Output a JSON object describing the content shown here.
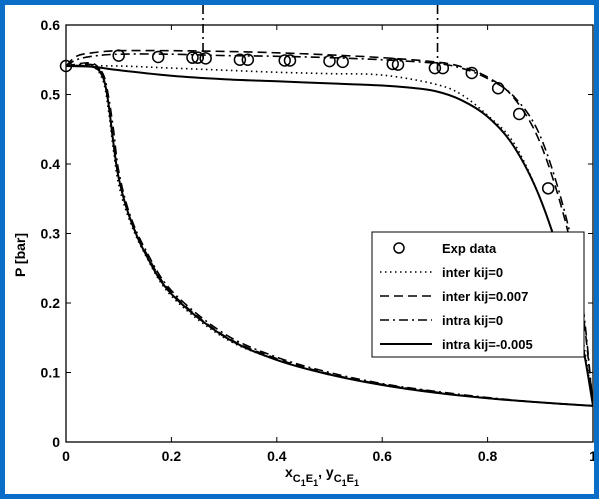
{
  "chart_data": {
    "type": "line",
    "xlabel": "x_{C1E1}, y_{C1E1}",
    "xlabel_parts": {
      "x": "x",
      "y": "y",
      "sub": "C",
      "subsub1": "1",
      "sub2": "E",
      "sep": ", "
    },
    "ylabel": "P [bar]",
    "xlim": [
      0,
      1
    ],
    "ylim": [
      0,
      0.6
    ],
    "xticks": [
      "0",
      "0.2",
      "0.4",
      "0.6",
      "0.8",
      "1"
    ],
    "yticks": [
      "0",
      "0.1",
      "0.2",
      "0.3",
      "0.4",
      "0.5",
      "0.6"
    ],
    "grid": false,
    "legend_position": "lower-right",
    "vertical_markers": [
      {
        "x": 0.26,
        "y_range": [
          0.55,
          0.59
        ]
      },
      {
        "x": 0.705,
        "y_range": [
          0.535,
          0.59
        ]
      }
    ],
    "exp_data": {
      "name": "Exp data",
      "points": [
        [
          0.0,
          0.541
        ],
        [
          0.1,
          0.556
        ],
        [
          0.175,
          0.554
        ],
        [
          0.24,
          0.553
        ],
        [
          0.25,
          0.553
        ],
        [
          0.265,
          0.552
        ],
        [
          0.33,
          0.55
        ],
        [
          0.345,
          0.55
        ],
        [
          0.415,
          0.549
        ],
        [
          0.425,
          0.549
        ],
        [
          0.5,
          0.548
        ],
        [
          0.525,
          0.547
        ],
        [
          0.62,
          0.544
        ],
        [
          0.63,
          0.543
        ],
        [
          0.7,
          0.538
        ],
        [
          0.715,
          0.538
        ],
        [
          0.77,
          0.531
        ],
        [
          0.82,
          0.509
        ],
        [
          0.86,
          0.472
        ],
        [
          0.915,
          0.365
        ]
      ]
    },
    "series": [
      {
        "name": "inter kij=0",
        "style": "dotted",
        "bubble": [
          [
            0,
            0.541
          ],
          [
            0.1,
            0.541
          ],
          [
            0.2,
            0.538
          ],
          [
            0.3,
            0.535
          ],
          [
            0.4,
            0.532
          ],
          [
            0.5,
            0.53
          ],
          [
            0.6,
            0.528
          ],
          [
            0.7,
            0.515
          ],
          [
            0.75,
            0.5
          ],
          [
            0.8,
            0.47
          ],
          [
            0.85,
            0.43
          ],
          [
            0.9,
            0.35
          ],
          [
            0.95,
            0.24
          ],
          [
            0.98,
            0.15
          ],
          [
            1.0,
            0.052
          ]
        ],
        "dew": [
          [
            0,
            0.541
          ],
          [
            0.05,
            0.54
          ],
          [
            0.07,
            0.52
          ],
          [
            0.08,
            0.48
          ],
          [
            0.09,
            0.42
          ],
          [
            0.1,
            0.37
          ],
          [
            0.12,
            0.32
          ],
          [
            0.15,
            0.27
          ],
          [
            0.2,
            0.21
          ],
          [
            0.3,
            0.15
          ],
          [
            0.4,
            0.118
          ],
          [
            0.5,
            0.097
          ],
          [
            0.6,
            0.082
          ],
          [
            0.7,
            0.071
          ],
          [
            0.8,
            0.063
          ],
          [
            0.9,
            0.057
          ],
          [
            1.0,
            0.052
          ]
        ]
      },
      {
        "name": "inter kij=0.007",
        "style": "dashed",
        "bubble": [
          [
            0,
            0.541
          ],
          [
            0.02,
            0.555
          ],
          [
            0.05,
            0.56
          ],
          [
            0.1,
            0.563
          ],
          [
            0.2,
            0.563
          ],
          [
            0.3,
            0.562
          ],
          [
            0.4,
            0.56
          ],
          [
            0.5,
            0.557
          ],
          [
            0.6,
            0.553
          ],
          [
            0.7,
            0.547
          ],
          [
            0.75,
            0.54
          ],
          [
            0.8,
            0.525
          ],
          [
            0.85,
            0.495
          ],
          [
            0.9,
            0.43
          ],
          [
            0.95,
            0.31
          ],
          [
            0.98,
            0.19
          ],
          [
            1.0,
            0.052
          ]
        ],
        "dew": [
          [
            0,
            0.541
          ],
          [
            0.05,
            0.545
          ],
          [
            0.07,
            0.525
          ],
          [
            0.08,
            0.49
          ],
          [
            0.09,
            0.43
          ],
          [
            0.1,
            0.38
          ],
          [
            0.12,
            0.325
          ],
          [
            0.15,
            0.275
          ],
          [
            0.2,
            0.215
          ],
          [
            0.3,
            0.153
          ],
          [
            0.4,
            0.12
          ],
          [
            0.5,
            0.098
          ],
          [
            0.6,
            0.083
          ],
          [
            0.7,
            0.072
          ],
          [
            0.8,
            0.063
          ],
          [
            0.9,
            0.057
          ],
          [
            1.0,
            0.052
          ]
        ]
      },
      {
        "name": "intra kij=0",
        "style": "dashdot",
        "bubble": [
          [
            0,
            0.541
          ],
          [
            0.02,
            0.55
          ],
          [
            0.05,
            0.555
          ],
          [
            0.1,
            0.558
          ],
          [
            0.2,
            0.558
          ],
          [
            0.3,
            0.556
          ],
          [
            0.4,
            0.555
          ],
          [
            0.5,
            0.553
          ],
          [
            0.6,
            0.55
          ],
          [
            0.7,
            0.545
          ],
          [
            0.75,
            0.538
          ],
          [
            0.8,
            0.523
          ],
          [
            0.85,
            0.497
          ],
          [
            0.9,
            0.44
          ],
          [
            0.95,
            0.32
          ],
          [
            0.98,
            0.2
          ],
          [
            1.0,
            0.052
          ]
        ],
        "dew": [
          [
            0,
            0.541
          ],
          [
            0.05,
            0.543
          ],
          [
            0.07,
            0.53
          ],
          [
            0.08,
            0.5
          ],
          [
            0.09,
            0.45
          ],
          [
            0.1,
            0.39
          ],
          [
            0.12,
            0.33
          ],
          [
            0.15,
            0.278
          ],
          [
            0.2,
            0.218
          ],
          [
            0.3,
            0.156
          ],
          [
            0.4,
            0.122
          ],
          [
            0.5,
            0.1
          ],
          [
            0.6,
            0.084
          ],
          [
            0.7,
            0.073
          ],
          [
            0.8,
            0.064
          ],
          [
            0.9,
            0.057
          ],
          [
            1.0,
            0.052
          ]
        ]
      },
      {
        "name": "intra kij=-0.005",
        "style": "solid",
        "bubble": [
          [
            0,
            0.541
          ],
          [
            0.05,
            0.54
          ],
          [
            0.1,
            0.535
          ],
          [
            0.2,
            0.527
          ],
          [
            0.3,
            0.522
          ],
          [
            0.4,
            0.519
          ],
          [
            0.5,
            0.516
          ],
          [
            0.6,
            0.513
          ],
          [
            0.65,
            0.51
          ],
          [
            0.7,
            0.505
          ],
          [
            0.75,
            0.492
          ],
          [
            0.8,
            0.468
          ],
          [
            0.85,
            0.425
          ],
          [
            0.9,
            0.35
          ],
          [
            0.95,
            0.235
          ],
          [
            0.98,
            0.14
          ],
          [
            1.0,
            0.052
          ]
        ],
        "dew": [
          [
            0,
            0.541
          ],
          [
            0.05,
            0.54
          ],
          [
            0.07,
            0.525
          ],
          [
            0.08,
            0.49
          ],
          [
            0.09,
            0.43
          ],
          [
            0.1,
            0.38
          ],
          [
            0.12,
            0.325
          ],
          [
            0.15,
            0.272
          ],
          [
            0.2,
            0.213
          ],
          [
            0.3,
            0.152
          ],
          [
            0.4,
            0.118
          ],
          [
            0.5,
            0.097
          ],
          [
            0.6,
            0.082
          ],
          [
            0.7,
            0.071
          ],
          [
            0.8,
            0.063
          ],
          [
            0.9,
            0.057
          ],
          [
            1.0,
            0.052
          ]
        ]
      }
    ]
  }
}
